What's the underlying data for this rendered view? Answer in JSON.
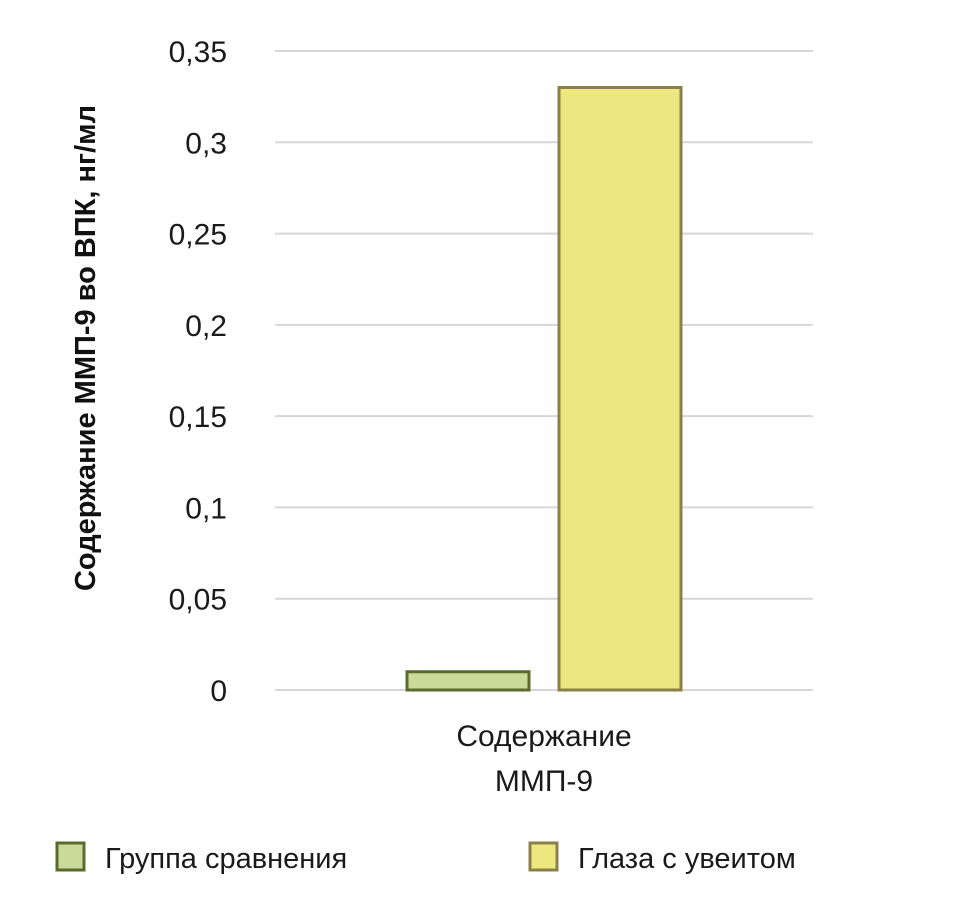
{
  "chart_data": {
    "type": "bar",
    "categories": [
      "Содержание ММП-9"
    ],
    "category_lines": [
      [
        "Содержание",
        "ММП-9"
      ]
    ],
    "series": [
      {
        "name": "Группа сравнения",
        "values": [
          0.01
        ],
        "color": "#c9da9a",
        "stroke": "#5b6b2c"
      },
      {
        "name": "Глаза с увеитом",
        "values": [
          0.33
        ],
        "color": "#ede77f",
        "stroke": "#8a8048"
      }
    ],
    "title": "",
    "xlabel": "",
    "ylabel": "Содержание ММП-9 во ВПК, нг/мл",
    "ylim": [
      0,
      0.35
    ],
    "yticks": [
      0,
      0.05,
      0.1,
      0.15,
      0.2,
      0.25,
      0.3,
      0.35
    ],
    "ytick_labels": [
      "0",
      "0,05",
      "0,1",
      "0,15",
      "0,2",
      "0,25",
      "0,3",
      "0,35"
    ],
    "grid": true,
    "legend_position": "bottom"
  }
}
